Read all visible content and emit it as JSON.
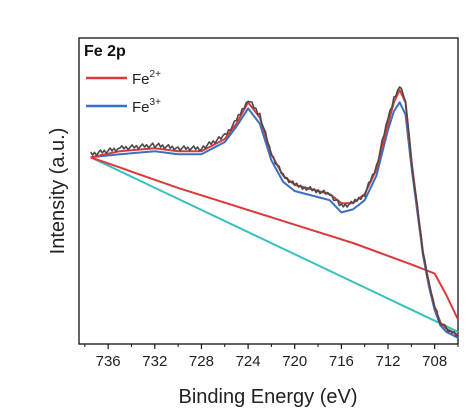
{
  "chart_data": {
    "type": "line",
    "title": "Fe 2p",
    "xlabel": "Binding Energy (eV)",
    "ylabel": "Intensity (a.u.)",
    "xlim": [
      738.5,
      706
    ],
    "x_reversed": true,
    "xticks": [
      736,
      732,
      728,
      724,
      720,
      716,
      712,
      708
    ],
    "ylim": [
      0,
      100
    ],
    "y_ticks_shown": false,
    "grid": false,
    "legend": {
      "placement": "top-left",
      "entries": [
        {
          "base": "Fe",
          "sup": "2+",
          "color": "#d93a3a"
        },
        {
          "base": "Fe",
          "sup": "3+",
          "color": "#3a6fc4"
        }
      ]
    },
    "series": [
      {
        "role": "raw-data",
        "color": "#4a4a4a",
        "x": [
          737.5,
          735,
          732,
          730,
          728,
          726,
          725,
          724,
          723,
          722,
          721,
          720,
          719,
          718,
          717,
          716,
          715,
          714,
          713,
          712,
          711.5,
          711,
          710.5,
          710,
          709,
          708.5,
          708,
          707.5,
          707,
          706.5,
          706
        ],
        "y": [
          62,
          64,
          65,
          64,
          64,
          68,
          73,
          80,
          75,
          62,
          55,
          52,
          51,
          50,
          49,
          45,
          46,
          49,
          58,
          74,
          80,
          84,
          80,
          60,
          30,
          20,
          12,
          7,
          5,
          4,
          3
        ]
      },
      {
        "name": "Fe 2+",
        "color": "#d93a3a",
        "x": [
          737.5,
          735,
          732,
          730,
          728,
          726,
          725,
          724,
          723,
          722,
          721,
          720,
          719,
          718,
          717,
          716,
          715,
          714,
          713,
          712,
          711.5,
          711,
          710.5,
          710,
          709,
          708.5,
          708,
          707.5,
          707,
          706.5,
          706
        ],
        "y": [
          61,
          63,
          64,
          63,
          63,
          67,
          72,
          79,
          74,
          62,
          55,
          52,
          51,
          50,
          49,
          46,
          46,
          49,
          57,
          72,
          79,
          83,
          79,
          60,
          30,
          20,
          12,
          7,
          5,
          4,
          3
        ]
      },
      {
        "name": "Fe 3+",
        "color": "#3a6fc4",
        "x": [
          737.5,
          735,
          732,
          730,
          728,
          726,
          725,
          724,
          723,
          722,
          721,
          720,
          719,
          718,
          717,
          716,
          715,
          714,
          713,
          712,
          711.5,
          711,
          710.5,
          710,
          709,
          708.5,
          708,
          707.5,
          707,
          706.5,
          706
        ],
        "y": [
          61,
          62,
          63,
          62,
          62,
          66,
          71,
          77,
          72,
          60,
          53,
          50,
          49,
          48,
          47,
          43,
          44,
          47,
          55,
          70,
          76,
          79,
          75,
          58,
          29,
          19,
          11,
          6,
          4,
          3,
          2
        ]
      },
      {
        "role": "background",
        "color": "#d93a3a",
        "x": [
          737.5,
          730,
          725,
          720,
          715,
          710,
          708,
          707,
          706
        ],
        "y": [
          61,
          51,
          45,
          39,
          33,
          26,
          23,
          16,
          8
        ]
      },
      {
        "role": "baseline",
        "color": "#3abfbf",
        "x": [
          737.5,
          706
        ],
        "y": [
          61,
          4
        ]
      }
    ]
  }
}
